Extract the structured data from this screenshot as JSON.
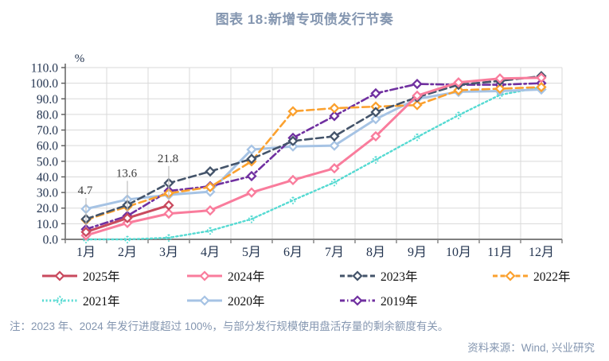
{
  "title": "图表 18:新增专项债发行节奏",
  "note": "注：2023 年、2024 年发行进度超过 100%，与部分发行规模使用盘活存量的剩余额度有关。",
  "source": "资料来源：Wind, 兴业研究",
  "chart_data": {
    "type": "line",
    "title": "图表 18:新增专项债发行节奏",
    "unit_label": "%",
    "categories": [
      "1月",
      "2月",
      "3月",
      "4月",
      "5月",
      "6月",
      "7月",
      "8月",
      "9月",
      "10月",
      "11月",
      "12月"
    ],
    "ylim": [
      0,
      110
    ],
    "ytick_step": 10,
    "grid": true,
    "legend_position": "bottom",
    "series": [
      {
        "name": "2025年",
        "color": "#C94A5E",
        "style": "solid",
        "marker": "diamond",
        "values": [
          4.7,
          13.6,
          21.8,
          null,
          null,
          null,
          null,
          null,
          null,
          null,
          null,
          null
        ]
      },
      {
        "name": "2024年",
        "color": "#F97C9C",
        "style": "solid",
        "marker": "diamond",
        "values": [
          2.5,
          10.5,
          16.5,
          18.5,
          30,
          38,
          45.5,
          66,
          92,
          100.5,
          103,
          103.5
        ]
      },
      {
        "name": "2023年",
        "color": "#44546A",
        "style": "dashed",
        "marker": "diamond",
        "values": [
          13,
          22,
          36,
          43.5,
          51.5,
          63,
          66,
          81.5,
          91,
          99,
          101.5,
          104.5
        ]
      },
      {
        "name": "2022年",
        "color": "#FBA12F",
        "style": "dashed",
        "marker": "diamond",
        "values": [
          12.5,
          21,
          29.5,
          33.5,
          50,
          82,
          84,
          85,
          86,
          95.5,
          96.5,
          97.5
        ]
      },
      {
        "name": "2021年",
        "color": "#55DAD2",
        "style": "dotted",
        "marker": "dot-diamond",
        "values": [
          0,
          0,
          1,
          5.5,
          13,
          25,
          36.5,
          51,
          65.5,
          79.5,
          92.5,
          97.5
        ]
      },
      {
        "name": "2020年",
        "color": "#A6C3E4",
        "style": "solid",
        "marker": "diamond",
        "values": [
          19.5,
          25.5,
          28.5,
          30.5,
          57.5,
          59.5,
          60,
          77,
          90,
          94.5,
          95,
          96
        ]
      },
      {
        "name": "2019年",
        "color": "#7030A0",
        "style": "dashdot",
        "marker": "diamond",
        "values": [
          6.5,
          15,
          31,
          34,
          40.5,
          65,
          79,
          93.5,
          99.5,
          99,
          99,
          100
        ]
      }
    ],
    "annotations": [
      {
        "text": "4.7",
        "month_index": 0,
        "point_value": 4.7,
        "text_value": 29
      },
      {
        "text": "13.6",
        "month_index": 1,
        "point_value": 13.6,
        "text_value": 40
      },
      {
        "text": "21.8",
        "month_index": 2,
        "point_value": 21.8,
        "text_value": 49.5
      }
    ]
  }
}
